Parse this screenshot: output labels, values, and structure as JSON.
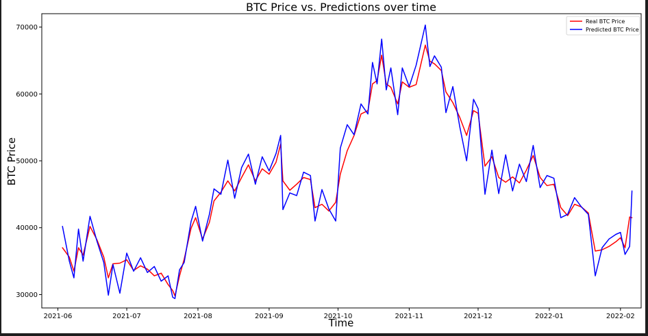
{
  "chart_data": {
    "type": "line",
    "title": "BTC Price vs. Predictions over time",
    "xlabel": "Time",
    "ylabel": "BTC Price",
    "x_ticks": [
      "2021-06",
      "2021-07",
      "2021-08",
      "2021-09",
      "2021-10",
      "2021-11",
      "2021-12",
      "2022-01",
      "2022-02"
    ],
    "y_ticks": [
      30000,
      40000,
      50000,
      60000,
      70000
    ],
    "xlim": [
      "2021-05-25",
      "2022-02-10"
    ],
    "ylim": [
      28000,
      72000
    ],
    "grid": false,
    "legend_position": "top-right",
    "series": [
      {
        "name": "Real BTC Price",
        "color": "#ff0000",
        "points": [
          [
            "2021-06-03",
            37000
          ],
          [
            "2021-06-06",
            35600
          ],
          [
            "2021-06-08",
            33500
          ],
          [
            "2021-06-10",
            37000
          ],
          [
            "2021-06-12",
            35900
          ],
          [
            "2021-06-15",
            40200
          ],
          [
            "2021-06-18",
            38200
          ],
          [
            "2021-06-21",
            35600
          ],
          [
            "2021-06-23",
            32500
          ],
          [
            "2021-06-25",
            34600
          ],
          [
            "2021-06-28",
            34700
          ],
          [
            "2021-07-01",
            35200
          ],
          [
            "2021-07-04",
            33600
          ],
          [
            "2021-07-07",
            34300
          ],
          [
            "2021-07-10",
            33800
          ],
          [
            "2021-07-13",
            32800
          ],
          [
            "2021-07-16",
            33200
          ],
          [
            "2021-07-19",
            31500
          ],
          [
            "2021-07-21",
            30600
          ],
          [
            "2021-07-22",
            29800
          ],
          [
            "2021-07-24",
            32800
          ],
          [
            "2021-07-26",
            35300
          ],
          [
            "2021-07-29",
            39900
          ],
          [
            "2021-07-31",
            41500
          ],
          [
            "2021-08-03",
            38300
          ],
          [
            "2021-08-06",
            40800
          ],
          [
            "2021-08-08",
            44000
          ],
          [
            "2021-08-11",
            45300
          ],
          [
            "2021-08-14",
            47000
          ],
          [
            "2021-08-17",
            45500
          ],
          [
            "2021-08-20",
            47500
          ],
          [
            "2021-08-23",
            49400
          ],
          [
            "2021-08-26",
            47000
          ],
          [
            "2021-08-29",
            48800
          ],
          [
            "2021-09-01",
            48000
          ],
          [
            "2021-09-04",
            49800
          ],
          [
            "2021-09-06",
            52500
          ],
          [
            "2021-09-07",
            47000
          ],
          [
            "2021-09-10",
            45600
          ],
          [
            "2021-09-13",
            46500
          ],
          [
            "2021-09-16",
            47500
          ],
          [
            "2021-09-19",
            47200
          ],
          [
            "2021-09-21",
            43000
          ],
          [
            "2021-09-24",
            43500
          ],
          [
            "2021-09-27",
            42500
          ],
          [
            "2021-09-30",
            43800
          ],
          [
            "2021-10-02",
            48000
          ],
          [
            "2021-10-05",
            51500
          ],
          [
            "2021-10-08",
            53800
          ],
          [
            "2021-10-11",
            57000
          ],
          [
            "2021-10-14",
            57500
          ],
          [
            "2021-10-16",
            61500
          ],
          [
            "2021-10-18",
            62000
          ],
          [
            "2021-10-20",
            65800
          ],
          [
            "2021-10-22",
            61500
          ],
          [
            "2021-10-24",
            61000
          ],
          [
            "2021-10-27",
            58500
          ],
          [
            "2021-10-29",
            61800
          ],
          [
            "2021-11-01",
            61000
          ],
          [
            "2021-11-04",
            61400
          ],
          [
            "2021-11-08",
            67300
          ],
          [
            "2021-11-10",
            64900
          ],
          [
            "2021-11-12",
            64500
          ],
          [
            "2021-11-15",
            63500
          ],
          [
            "2021-11-17",
            60300
          ],
          [
            "2021-11-20",
            58700
          ],
          [
            "2021-11-23",
            56500
          ],
          [
            "2021-11-26",
            53800
          ],
          [
            "2021-11-29",
            57500
          ],
          [
            "2021-12-01",
            57100
          ],
          [
            "2021-12-04",
            49200
          ],
          [
            "2021-12-07",
            50600
          ],
          [
            "2021-12-10",
            47500
          ],
          [
            "2021-12-13",
            46800
          ],
          [
            "2021-12-16",
            47600
          ],
          [
            "2021-12-19",
            46700
          ],
          [
            "2021-12-22",
            48600
          ],
          [
            "2021-12-25",
            50800
          ],
          [
            "2021-12-28",
            47500
          ],
          [
            "2021-12-31",
            46300
          ],
          [
            "2022-01-03",
            46500
          ],
          [
            "2022-01-06",
            43000
          ],
          [
            "2022-01-09",
            41800
          ],
          [
            "2022-01-12",
            43500
          ],
          [
            "2022-01-15",
            43100
          ],
          [
            "2022-01-18",
            42200
          ],
          [
            "2022-01-21",
            36500
          ],
          [
            "2022-01-24",
            36700
          ],
          [
            "2022-01-27",
            37200
          ],
          [
            "2022-01-30",
            37900
          ],
          [
            "2022-02-01",
            38500
          ],
          [
            "2022-02-03",
            37000
          ],
          [
            "2022-02-05",
            41600
          ],
          [
            "2022-02-06",
            41500
          ]
        ]
      },
      {
        "name": "Predicted BTC Price",
        "color": "#0000ff",
        "points": [
          [
            "2021-06-03",
            40200
          ],
          [
            "2021-06-06",
            35000
          ],
          [
            "2021-06-08",
            32500
          ],
          [
            "2021-06-10",
            39800
          ],
          [
            "2021-06-12",
            35000
          ],
          [
            "2021-06-15",
            41700
          ],
          [
            "2021-06-18",
            38000
          ],
          [
            "2021-06-21",
            34800
          ],
          [
            "2021-06-23",
            29900
          ],
          [
            "2021-06-25",
            34500
          ],
          [
            "2021-06-28",
            30200
          ],
          [
            "2021-07-01",
            36200
          ],
          [
            "2021-07-04",
            33500
          ],
          [
            "2021-07-07",
            35500
          ],
          [
            "2021-07-10",
            33300
          ],
          [
            "2021-07-13",
            34200
          ],
          [
            "2021-07-16",
            32000
          ],
          [
            "2021-07-19",
            32800
          ],
          [
            "2021-07-21",
            29600
          ],
          [
            "2021-07-22",
            29400
          ],
          [
            "2021-07-24",
            33700
          ],
          [
            "2021-07-26",
            34800
          ],
          [
            "2021-07-29",
            40900
          ],
          [
            "2021-07-31",
            43200
          ],
          [
            "2021-08-03",
            38000
          ],
          [
            "2021-08-06",
            42000
          ],
          [
            "2021-08-08",
            45800
          ],
          [
            "2021-08-11",
            45000
          ],
          [
            "2021-08-14",
            50100
          ],
          [
            "2021-08-17",
            44400
          ],
          [
            "2021-08-20",
            49000
          ],
          [
            "2021-08-23",
            51000
          ],
          [
            "2021-08-26",
            46500
          ],
          [
            "2021-08-29",
            50600
          ],
          [
            "2021-09-01",
            48500
          ],
          [
            "2021-09-04",
            51100
          ],
          [
            "2021-09-06",
            53800
          ],
          [
            "2021-09-07",
            42700
          ],
          [
            "2021-09-10",
            45200
          ],
          [
            "2021-09-13",
            44800
          ],
          [
            "2021-09-16",
            48300
          ],
          [
            "2021-09-19",
            47800
          ],
          [
            "2021-09-21",
            41000
          ],
          [
            "2021-09-24",
            45700
          ],
          [
            "2021-09-27",
            42800
          ],
          [
            "2021-09-30",
            41000
          ],
          [
            "2021-10-02",
            51900
          ],
          [
            "2021-10-05",
            55400
          ],
          [
            "2021-10-08",
            53900
          ],
          [
            "2021-10-11",
            58500
          ],
          [
            "2021-10-14",
            57000
          ],
          [
            "2021-10-16",
            64700
          ],
          [
            "2021-10-18",
            61500
          ],
          [
            "2021-10-20",
            68200
          ],
          [
            "2021-10-22",
            60600
          ],
          [
            "2021-10-24",
            63900
          ],
          [
            "2021-10-27",
            56900
          ],
          [
            "2021-10-29",
            63900
          ],
          [
            "2021-11-01",
            61100
          ],
          [
            "2021-11-04",
            64300
          ],
          [
            "2021-11-08",
            70300
          ],
          [
            "2021-11-10",
            64100
          ],
          [
            "2021-11-12",
            65700
          ],
          [
            "2021-11-15",
            64000
          ],
          [
            "2021-11-17",
            57200
          ],
          [
            "2021-11-20",
            61100
          ],
          [
            "2021-11-23",
            55100
          ],
          [
            "2021-11-26",
            50000
          ],
          [
            "2021-11-29",
            59200
          ],
          [
            "2021-12-01",
            57800
          ],
          [
            "2021-12-04",
            45000
          ],
          [
            "2021-12-07",
            51600
          ],
          [
            "2021-12-10",
            45100
          ],
          [
            "2021-12-13",
            50900
          ],
          [
            "2021-12-16",
            45500
          ],
          [
            "2021-12-19",
            49500
          ],
          [
            "2021-12-22",
            46900
          ],
          [
            "2021-12-25",
            52300
          ],
          [
            "2021-12-28",
            46000
          ],
          [
            "2021-12-31",
            47800
          ],
          [
            "2022-01-03",
            47400
          ],
          [
            "2022-01-06",
            41500
          ],
          [
            "2022-01-09",
            42000
          ],
          [
            "2022-01-12",
            44500
          ],
          [
            "2022-01-15",
            43100
          ],
          [
            "2022-01-18",
            42000
          ],
          [
            "2022-01-21",
            32800
          ],
          [
            "2022-01-24",
            37000
          ],
          [
            "2022-01-27",
            38300
          ],
          [
            "2022-01-30",
            39000
          ],
          [
            "2022-02-01",
            39300
          ],
          [
            "2022-02-03",
            36000
          ],
          [
            "2022-02-05",
            37200
          ],
          [
            "2022-02-06",
            45500
          ]
        ]
      }
    ]
  }
}
